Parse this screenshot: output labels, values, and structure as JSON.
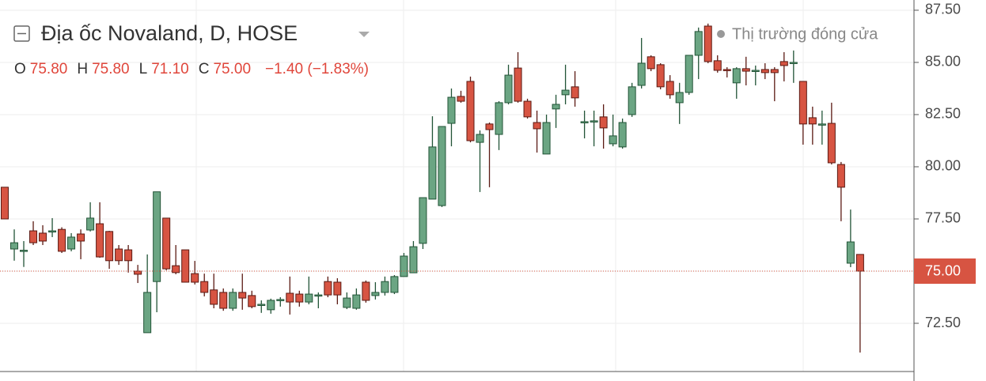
{
  "chart_data": {
    "type": "candlestick",
    "title": "Địa ốc Novaland, D, HOSE",
    "status": "Thị trường đóng cửa",
    "ohlc": [
      {
        "label": "O",
        "value": "75.80"
      },
      {
        "label": "H",
        "value": "75.80"
      },
      {
        "label": "L",
        "value": "71.10"
      },
      {
        "label": "C",
        "value": "75.00"
      }
    ],
    "change": "−1.40 (−1.83%)",
    "open": [
      79.02,
      76.06,
      75.95,
      76.93,
      76.82,
      76.9,
      77.0,
      76.06,
      76.78,
      76.97,
      77.27,
      76.9,
      76.06,
      76.02,
      75.0,
      72.05,
      74.5,
      77.54,
      75.26,
      76.02,
      74.88,
      74.5,
      74.1,
      73.98,
      73.22,
      73.98,
      73.83,
      73.37,
      73.15,
      73.6,
      73.94,
      73.9,
      73.52,
      73.83,
      74.5,
      74.47,
      73.26,
      73.22,
      74.47,
      73.83,
      73.98,
      73.98,
      74.74,
      74.92,
      76.33,
      78.45,
      78.14,
      82.08,
      83.37,
      84.09,
      81.17,
      82.05,
      81.55,
      83.07,
      84.73,
      83.14,
      82.12,
      80.61,
      82.77,
      83.45,
      83.83,
      82.12,
      82.16,
      82.39,
      81.1,
      80.95,
      82.5,
      83.9,
      85.27,
      84.89,
      84.09,
      83.07,
      83.56,
      85.34,
      86.74,
      85.08,
      84.66,
      84.02,
      84.7,
      84.58,
      84.66,
      84.66,
      85.04,
      84.96,
      84.09,
      82.35,
      82.0,
      82.08,
      80.11,
      75.38,
      75.8
    ],
    "high": [
      79.02,
      77.0,
      76.44,
      77.39,
      77.2,
      77.54,
      77.1,
      76.82,
      77.0,
      78.3,
      78.3,
      76.93,
      76.25,
      76.25,
      75.3,
      75.8,
      78.8,
      77.54,
      76.25,
      76.02,
      75.49,
      74.88,
      74.88,
      74.17,
      74.17,
      74.88,
      74.06,
      73.6,
      73.68,
      73.75,
      74.74,
      74.06,
      74.74,
      73.98,
      74.74,
      74.66,
      73.98,
      74.17,
      74.55,
      74.47,
      74.74,
      74.81,
      75.87,
      76.44,
      78.52,
      82.42,
      81.93,
      83.75,
      83.64,
      84.32,
      81.74,
      82.12,
      83.14,
      84.89,
      85.49,
      83.26,
      82.69,
      82.5,
      83.45,
      84.89,
      84.58,
      82.69,
      82.69,
      82.99,
      82.5,
      82.31,
      84.02,
      86.17,
      85.34,
      84.96,
      84.39,
      84.02,
      85.34,
      86.67,
      86.86,
      85.34,
      84.77,
      84.77,
      85.27,
      84.85,
      84.96,
      84.77,
      85.49,
      85.57,
      84.09,
      82.88,
      82.69,
      83.07,
      80.23,
      77.95,
      75.8
    ],
    "low": [
      77.5,
      75.5,
      75.2,
      76.25,
      76.25,
      76.63,
      75.87,
      75.95,
      75.57,
      76.9,
      75.64,
      75.11,
      75.3,
      74.93,
      74.43,
      72.05,
      73.03,
      75.04,
      74.85,
      74.47,
      74.36,
      73.79,
      73.22,
      73.1,
      73.1,
      73.15,
      73.22,
      73.0,
      72.96,
      73.3,
      72.92,
      73.3,
      73.41,
      73.22,
      73.75,
      73.41,
      73.18,
      73.15,
      73.49,
      73.64,
      73.83,
      73.9,
      74.74,
      74.92,
      76.06,
      78.45,
      78.07,
      80.98,
      83.07,
      81.17,
      78.79,
      79.02,
      80.8,
      82.99,
      83.07,
      82.31,
      80.68,
      80.61,
      81.86,
      82.99,
      82.88,
      81.36,
      80.98,
      80.87,
      80.98,
      80.87,
      82.39,
      83.75,
      84.58,
      83.71,
      83.26,
      82.05,
      83.45,
      84.2,
      84.96,
      84.51,
      84.28,
      83.26,
      83.9,
      83.9,
      84.2,
      83.14,
      84.09,
      84.02,
      81.06,
      81.06,
      81.06,
      80.11,
      77.39,
      75.19,
      71.1
    ],
    "close": [
      77.5,
      76.36,
      76.0,
      76.36,
      76.44,
      76.93,
      75.95,
      76.63,
      76.44,
      77.54,
      75.68,
      75.5,
      75.5,
      75.5,
      74.85,
      73.98,
      78.8,
      75.11,
      74.93,
      74.47,
      74.47,
      73.98,
      73.41,
      73.22,
      73.98,
      73.71,
      73.3,
      73.41,
      73.6,
      73.64,
      73.52,
      73.52,
      73.9,
      73.86,
      73.86,
      73.86,
      73.71,
      73.86,
      73.6,
      73.98,
      74.5,
      74.74,
      75.72,
      76.17,
      78.52,
      80.95,
      81.93,
      83.33,
      83.14,
      81.25,
      81.55,
      81.78,
      83.07,
      84.39,
      83.14,
      82.39,
      81.82,
      82.12,
      82.99,
      83.67,
      83.3,
      82.16,
      82.2,
      81.86,
      81.48,
      82.12,
      83.83,
      84.96,
      84.7,
      83.83,
      83.45,
      83.56,
      85.34,
      86.48,
      85.04,
      84.62,
      84.62,
      84.7,
      84.58,
      84.62,
      84.51,
      84.51,
      84.85,
      85.0,
      82.05,
      82.05,
      82.05,
      80.19,
      79.02,
      76.4,
      75.0
    ],
    "up_color": "#6ba583",
    "down_color": "#d75442",
    "ylim": [
      70.19,
      87.99
    ],
    "yticks": [
      {
        "value": 72.5,
        "label": "72.50"
      },
      {
        "value": 75,
        "label": "75.00"
      },
      {
        "value": 77.5,
        "label": "77.50"
      },
      {
        "value": 80,
        "label": "80.00"
      },
      {
        "value": 82.5,
        "label": "82.50"
      },
      {
        "value": 85,
        "label": "85.00"
      },
      {
        "value": 87.5,
        "label": "87.50"
      }
    ],
    "grid": true,
    "last_price": {
      "value": 75,
      "label": "75.00"
    }
  }
}
